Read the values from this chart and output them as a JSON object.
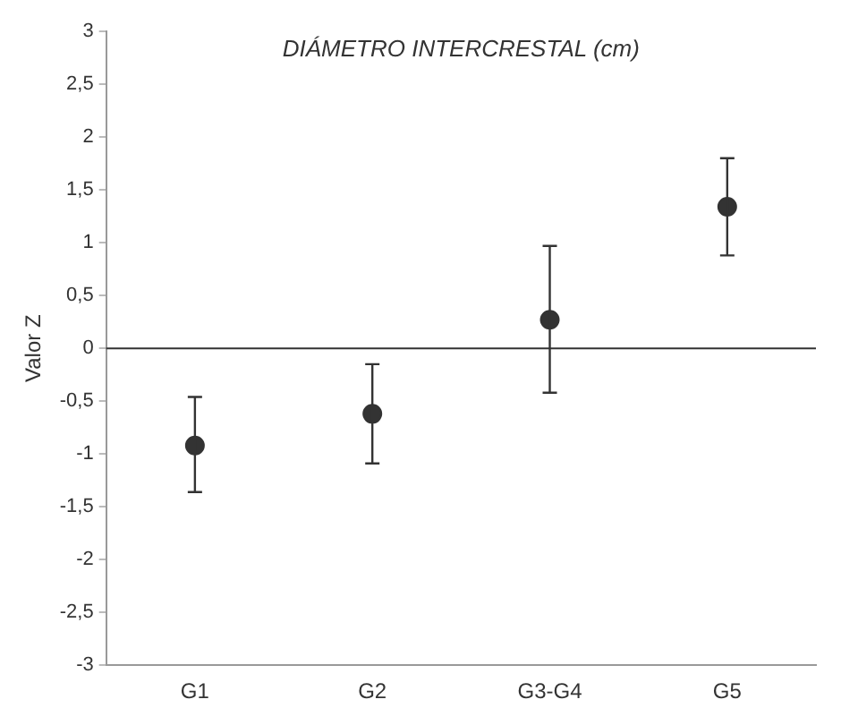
{
  "chart_data": {
    "type": "scatter",
    "title": "DIÁMETRO INTERCRESTAL (cm)",
    "ylabel": "Valor Z",
    "categories": [
      "G1",
      "G2",
      "G3-G4",
      "G5"
    ],
    "values": [
      -0.92,
      -0.62,
      0.27,
      1.34
    ],
    "errors": [
      [
        -1.36,
        -0.46
      ],
      [
        -1.09,
        -0.15
      ],
      [
        -0.42,
        0.97
      ],
      [
        0.88,
        1.8
      ]
    ],
    "color": "#333333",
    "marker": "circle",
    "ylim": [
      -3,
      3
    ],
    "yticks": [
      {
        "value": -3,
        "label": "-3"
      },
      {
        "value": -2.5,
        "label": "-2,5"
      },
      {
        "value": -2,
        "label": "-2"
      },
      {
        "value": -1.5,
        "label": "-1,5"
      },
      {
        "value": -1,
        "label": "-1"
      },
      {
        "value": -0.5,
        "label": "-0,5"
      },
      {
        "value": 0,
        "label": "0"
      },
      {
        "value": 0.5,
        "label": "0,5"
      },
      {
        "value": 1,
        "label": "1"
      },
      {
        "value": 1.5,
        "label": "1,5"
      },
      {
        "value": 2,
        "label": "2"
      },
      {
        "value": 2.5,
        "label": "2,5"
      },
      {
        "value": 3,
        "label": "3"
      }
    ],
    "ref_lines": [
      {
        "axis": "y",
        "value": 0,
        "color": "#333333"
      }
    ],
    "grid": false,
    "legend": false
  }
}
